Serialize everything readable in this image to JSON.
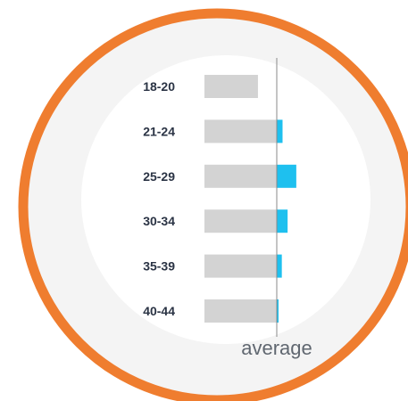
{
  "colors": {
    "ring": "#ef7d2f",
    "inner_background": "#f4f4f4",
    "panel_background": "#ffffff",
    "base_bar": "#d3d3d3",
    "positive_delta": "#1ec0ef",
    "average_line": "#8a8a8a",
    "label_text": "#2a3344",
    "average_text": "#606770"
  },
  "chart_data": {
    "type": "bar",
    "orientation": "horizontal",
    "title": "",
    "xlabel": "average",
    "ylabel": "",
    "reference_line": {
      "label": "average",
      "value": 100
    },
    "categories": [
      "18-20",
      "21-24",
      "25-29",
      "30-34",
      "35-39",
      "40-44"
    ],
    "values": [
      74,
      108,
      127,
      115,
      107,
      102
    ],
    "grid": false,
    "legend": "none"
  }
}
